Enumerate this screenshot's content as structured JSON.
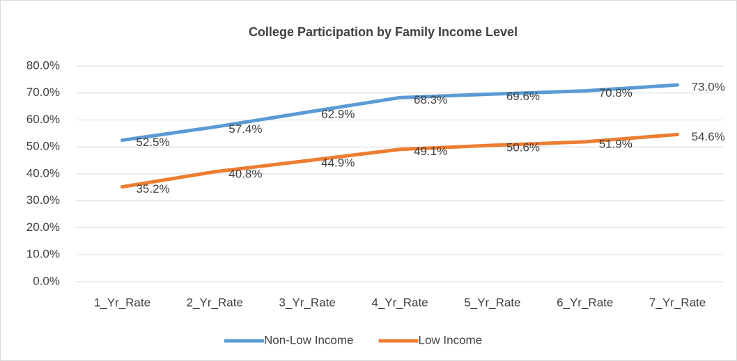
{
  "chart_data": {
    "type": "line",
    "title": "College Participation by Family Income Level",
    "categories": [
      "1_Yr_Rate",
      "2_Yr_Rate",
      "3_Yr_Rate",
      "4_Yr_Rate",
      "5_Yr_Rate",
      "6_Yr_Rate",
      "7_Yr_Rate"
    ],
    "series": [
      {
        "name": "Non-Low Income",
        "color": "#5b9bd5",
        "values": [
          52.5,
          57.4,
          62.9,
          68.3,
          69.6,
          70.8,
          73.0
        ],
        "value_labels": [
          "52.5%",
          "57.4%",
          "62.9%",
          "68.3%",
          "69.6%",
          "70.8%",
          "73.0%"
        ]
      },
      {
        "name": "Low Income",
        "color": "#ed7d31",
        "values": [
          35.2,
          40.8,
          44.9,
          49.1,
          50.6,
          51.9,
          54.6
        ],
        "value_labels": [
          "35.2%",
          "40.8%",
          "44.9%",
          "49.1%",
          "50.6%",
          "51.9%",
          "54.6%"
        ]
      }
    ],
    "ylim": [
      0,
      80
    ],
    "yticks": [
      {
        "value": 0,
        "label": "0.0%"
      },
      {
        "value": 10,
        "label": "10.0%"
      },
      {
        "value": 20,
        "label": "20.0%"
      },
      {
        "value": 30,
        "label": "30.0%"
      },
      {
        "value": 40,
        "label": "40.0%"
      },
      {
        "value": 50,
        "label": "50.0%"
      },
      {
        "value": 60,
        "label": "60.0%"
      },
      {
        "value": 70,
        "label": "70.0%"
      },
      {
        "value": 80,
        "label": "80.0%"
      }
    ],
    "grid": true,
    "legend": "bottom"
  }
}
